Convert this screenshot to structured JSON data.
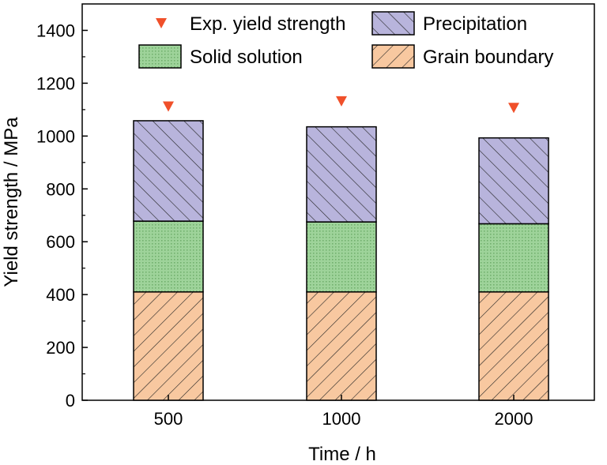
{
  "chart_data": {
    "type": "bar",
    "stacked": true,
    "title": "",
    "xlabel": "Time / h",
    "ylabel": "Yield strength / MPa",
    "categories": [
      "500",
      "1000",
      "2000"
    ],
    "ylim": [
      0,
      1500
    ],
    "yticks": [
      0,
      200,
      400,
      600,
      800,
      1000,
      1200,
      1400
    ],
    "series": [
      {
        "name": "Grain boundary",
        "values": [
          410,
          410,
          410
        ],
        "color": "#f8c8a0",
        "pattern": "hatch-forward"
      },
      {
        "name": "Solid solution",
        "values": [
          268,
          265,
          258
        ],
        "color": "#9ed39a",
        "pattern": "dots"
      },
      {
        "name": "Precipitation",
        "values": [
          380,
          360,
          325
        ],
        "color": "#b8b4dc",
        "pattern": "hatch-back"
      }
    ],
    "markers": {
      "name": "Exp. yield strength",
      "values": [
        1110,
        1130,
        1105
      ],
      "color": "#f0502a",
      "shape": "triangle-down"
    },
    "legend": {
      "placement": "top",
      "columns": 2
    },
    "grid": false
  }
}
